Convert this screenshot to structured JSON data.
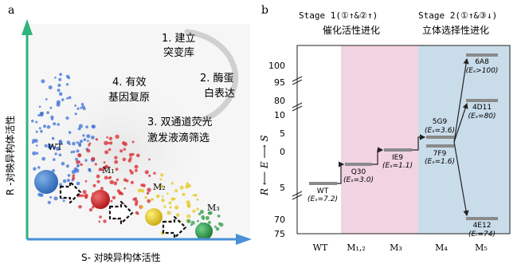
{
  "panel_a": {
    "label": "a",
    "y_axis_label": "R -对映异构体活性",
    "x_axis_label": "S- 对映异构体活性",
    "step1": [
      "1. 建立",
      "突变库"
    ],
    "step2": [
      "2. 酶蛋",
      "白表达"
    ],
    "step3": [
      "3. 双通道荧光",
      "激发液滴筛选"
    ],
    "step4": [
      "4. 有效",
      "基因复原"
    ],
    "variants": [
      "WT",
      "M₁",
      "M₂",
      "M₃"
    ],
    "colors": {
      "blue": "#3b6fd6",
      "red": "#d9262b",
      "yellow": "#e3c71c",
      "green": "#2e9b45",
      "axis": "#2fb37a"
    }
  },
  "panel_b": {
    "label": "b",
    "stage1_title": "Stage 1(①↑&②↑)",
    "stage1_subtitle": "催化活性进化",
    "stage2_title": "Stage 2(①↑&③↓)",
    "stage2_subtitle": "立体选择性进化",
    "y_axis_label": "R ⟵ E ⟶ S",
    "y_ticks_top": [
      "100",
      "95",
      "80",
      "10",
      "5",
      "0"
    ],
    "y_ticks_bottom": [
      "5",
      "70",
      "75"
    ],
    "x_ticks": [
      "WT",
      "M₁,₂",
      "M₃",
      "M₄",
      "M₅"
    ],
    "levels": [
      {
        "name": "WT",
        "value": "(Eₛ=7.2)"
      },
      {
        "name": "Q30",
        "value": "(Eₛ=3.0)"
      },
      {
        "name": "IE9",
        "value": "(Eₛ=1.1)"
      },
      {
        "name": "5G9",
        "value": "(Eₛ=3.6)"
      },
      {
        "name": "7F9",
        "value": "(Eₛ=1.6)"
      },
      {
        "name": "6A8",
        "value": "(Eₛ>100)"
      },
      {
        "name": "4D11",
        "value": "(Eₛ=80)"
      },
      {
        "name": "4E12",
        "value": "(Eᵣ=74)"
      }
    ],
    "colors": {
      "stage1_bg": "#f2d3e1",
      "stage2_bg": "#c9dcea",
      "level": "#8a8a8a"
    }
  }
}
